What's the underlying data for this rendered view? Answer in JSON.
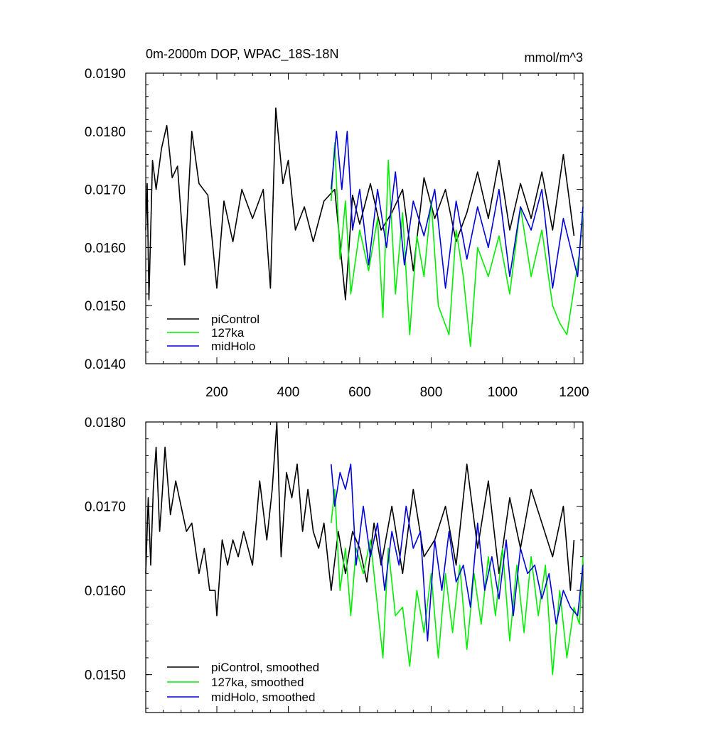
{
  "chart_data": [
    {
      "type": "line",
      "title": "0m-2000m DOP, WPAC_18S-18N",
      "units": "mmol/m^3",
      "xlabel": "",
      "ylabel": "",
      "xlim": [
        1,
        1225
      ],
      "ylim": [
        0.014,
        0.019
      ],
      "x_ticks": [
        200,
        400,
        600,
        800,
        1000,
        1200
      ],
      "x_tick_labels": [
        "200",
        "400",
        "600",
        "800",
        "1000",
        "1200"
      ],
      "y_ticks": [
        0.014,
        0.015,
        0.016,
        0.017,
        0.018,
        0.019
      ],
      "y_tick_labels": [
        "0.0140",
        "0.0150",
        "0.0160",
        "0.0170",
        "0.0180",
        "0.0190"
      ],
      "grid": false,
      "legend_position": "bottom-left",
      "series": [
        {
          "name": "piControl",
          "color": "#000000",
          "x": [
            1,
            5,
            10,
            20,
            30,
            45,
            60,
            75,
            90,
            110,
            130,
            150,
            175,
            200,
            220,
            245,
            270,
            300,
            330,
            350,
            365,
            385,
            400,
            420,
            445,
            470,
            500,
            530,
            560,
            580,
            600,
            630,
            660,
            690,
            720,
            750,
            780,
            810,
            840,
            870,
            900,
            930,
            960,
            990,
            1020,
            1050,
            1080,
            1110,
            1140,
            1170,
            1200
          ],
          "y": [
            0.0163,
            0.0171,
            0.0151,
            0.0175,
            0.017,
            0.0177,
            0.0181,
            0.0172,
            0.0174,
            0.0157,
            0.018,
            0.0171,
            0.0169,
            0.0153,
            0.0168,
            0.0161,
            0.017,
            0.0165,
            0.017,
            0.0153,
            0.0184,
            0.0171,
            0.0175,
            0.0163,
            0.0167,
            0.0161,
            0.0168,
            0.017,
            0.0151,
            0.0169,
            0.0164,
            0.0171,
            0.0163,
            0.0166,
            0.017,
            0.0156,
            0.0172,
            0.0165,
            0.017,
            0.0161,
            0.0166,
            0.0173,
            0.0165,
            0.0175,
            0.0163,
            0.0171,
            0.0165,
            0.0173,
            0.0163,
            0.0176,
            0.0162
          ]
        },
        {
          "name": "127ka",
          "color": "#00ee00",
          "x": [
            520,
            530,
            545,
            560,
            575,
            600,
            625,
            650,
            665,
            680,
            700,
            720,
            740,
            760,
            780,
            800,
            820,
            850,
            870,
            890,
            910,
            930,
            960,
            990,
            1020,
            1050,
            1080,
            1110,
            1140,
            1160,
            1180,
            1200,
            1215,
            1225
          ],
          "y": [
            0.0168,
            0.0178,
            0.0158,
            0.0168,
            0.0152,
            0.0163,
            0.0156,
            0.0165,
            0.0148,
            0.0175,
            0.0152,
            0.0166,
            0.0145,
            0.0162,
            0.0155,
            0.0168,
            0.015,
            0.0145,
            0.0163,
            0.0155,
            0.0143,
            0.016,
            0.0155,
            0.0162,
            0.0152,
            0.0167,
            0.0155,
            0.0163,
            0.015,
            0.0147,
            0.0145,
            0.0153,
            0.0159,
            0.0166
          ]
        },
        {
          "name": "midHolo",
          "color": "#0000dd",
          "x": [
            520,
            535,
            550,
            565,
            580,
            600,
            625,
            650,
            675,
            700,
            725,
            750,
            780,
            810,
            840,
            870,
            900,
            930,
            960,
            990,
            1020,
            1050,
            1080,
            1110,
            1140,
            1170,
            1190,
            1210,
            1225
          ],
          "y": [
            0.017,
            0.018,
            0.017,
            0.018,
            0.0163,
            0.017,
            0.0157,
            0.017,
            0.016,
            0.0173,
            0.0157,
            0.0168,
            0.0162,
            0.017,
            0.0153,
            0.0168,
            0.0158,
            0.0167,
            0.016,
            0.017,
            0.0155,
            0.0167,
            0.0163,
            0.017,
            0.0153,
            0.0165,
            0.016,
            0.0155,
            0.0167
          ]
        }
      ]
    },
    {
      "type": "line",
      "title": "",
      "xlabel": "",
      "ylabel": "",
      "xlim": [
        1,
        1225
      ],
      "ylim": [
        0.01455,
        0.018
      ],
      "x_ticks": [
        200,
        400,
        600,
        800,
        1000,
        1200
      ],
      "y_ticks": [
        0.015,
        0.016,
        0.017,
        0.018
      ],
      "y_tick_labels": [
        "0.0150",
        "0.0160",
        "0.0170",
        "0.0180"
      ],
      "grid": false,
      "legend_position": "bottom-left",
      "series": [
        {
          "name": "piControl, smoothed",
          "color": "#000000",
          "x": [
            1,
            8,
            15,
            22,
            30,
            40,
            48,
            55,
            70,
            85,
            100,
            115,
            130,
            150,
            165,
            180,
            195,
            200,
            215,
            230,
            245,
            260,
            275,
            300,
            320,
            340,
            355,
            368,
            380,
            395,
            410,
            425,
            440,
            455,
            470,
            485,
            500,
            520,
            540,
            560,
            580,
            600,
            620,
            640,
            660,
            690,
            720,
            750,
            780,
            810,
            840,
            870,
            900,
            930,
            960,
            990,
            1020,
            1050,
            1080,
            1110,
            1140,
            1170,
            1190,
            1200
          ],
          "y": [
            0.0162,
            0.0171,
            0.0163,
            0.0172,
            0.0177,
            0.0167,
            0.0172,
            0.0177,
            0.0169,
            0.0173,
            0.017,
            0.0167,
            0.0168,
            0.0162,
            0.0165,
            0.016,
            0.016,
            0.0157,
            0.0166,
            0.0163,
            0.0166,
            0.0164,
            0.0167,
            0.0163,
            0.0173,
            0.0166,
            0.0172,
            0.018,
            0.0164,
            0.0174,
            0.0171,
            0.0175,
            0.0167,
            0.0172,
            0.0167,
            0.0165,
            0.0168,
            0.016,
            0.0167,
            0.0162,
            0.0167,
            0.0165,
            0.0161,
            0.0168,
            0.0163,
            0.017,
            0.0162,
            0.0172,
            0.0164,
            0.0166,
            0.017,
            0.0163,
            0.0175,
            0.0165,
            0.0173,
            0.0162,
            0.0171,
            0.0165,
            0.0172,
            0.0168,
            0.0164,
            0.017,
            0.016,
            0.0166
          ]
        },
        {
          "name": "127ka, smoothed",
          "color": "#00ee00",
          "x": [
            520,
            530,
            545,
            560,
            575,
            590,
            610,
            630,
            650,
            665,
            680,
            700,
            720,
            740,
            760,
            780,
            800,
            820,
            840,
            860,
            880,
            900,
            920,
            940,
            960,
            980,
            1000,
            1020,
            1040,
            1060,
            1080,
            1100,
            1120,
            1140,
            1160,
            1180,
            1200,
            1215,
            1225
          ],
          "y": [
            0.0168,
            0.0172,
            0.016,
            0.0165,
            0.0157,
            0.0165,
            0.0162,
            0.0166,
            0.0158,
            0.0152,
            0.0165,
            0.0157,
            0.0158,
            0.0151,
            0.016,
            0.0155,
            0.0162,
            0.0152,
            0.0162,
            0.0155,
            0.0163,
            0.0153,
            0.0162,
            0.0156,
            0.0164,
            0.0157,
            0.0165,
            0.0154,
            0.0163,
            0.0155,
            0.0164,
            0.0157,
            0.0163,
            0.015,
            0.016,
            0.0152,
            0.0158,
            0.0156,
            0.0164
          ]
        },
        {
          "name": "midHolo, smoothed",
          "color": "#0000dd",
          "x": [
            520,
            530,
            545,
            560,
            575,
            590,
            610,
            630,
            650,
            670,
            690,
            710,
            730,
            750,
            770,
            790,
            810,
            830,
            850,
            870,
            890,
            910,
            930,
            950,
            970,
            990,
            1010,
            1030,
            1050,
            1070,
            1090,
            1110,
            1130,
            1150,
            1170,
            1190,
            1210,
            1225
          ],
          "y": [
            0.0175,
            0.017,
            0.0174,
            0.0172,
            0.0175,
            0.0163,
            0.017,
            0.0164,
            0.0168,
            0.016,
            0.0167,
            0.0163,
            0.017,
            0.0165,
            0.0167,
            0.0154,
            0.0166,
            0.016,
            0.0167,
            0.0161,
            0.0163,
            0.0158,
            0.0168,
            0.016,
            0.0164,
            0.0159,
            0.0166,
            0.0157,
            0.0165,
            0.0162,
            0.0163,
            0.0159,
            0.0162,
            0.0156,
            0.016,
            0.0158,
            0.0157,
            0.0163
          ]
        }
      ]
    }
  ]
}
